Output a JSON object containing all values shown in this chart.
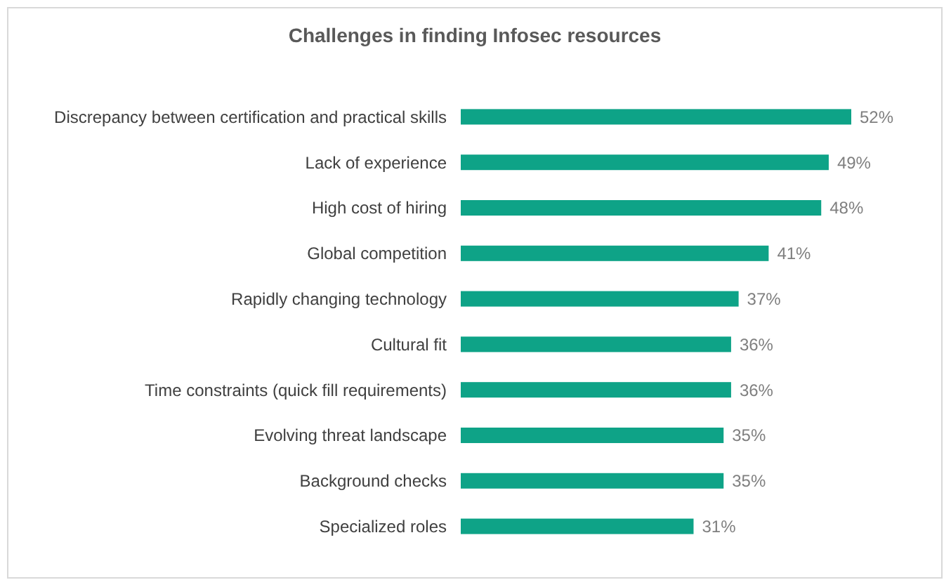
{
  "chart_data": {
    "type": "bar",
    "orientation": "horizontal",
    "title": "Challenges in finding Infosec resources",
    "categories": [
      "Discrepancy between certification and practical skills",
      "Lack of experience",
      "High cost of hiring",
      "Global competition",
      "Rapidly changing technology",
      "Cultural fit",
      "Time constraints (quick fill requirements)",
      "Evolving threat landscape",
      "Background checks",
      "Specialized roles"
    ],
    "values": [
      52,
      49,
      48,
      41,
      37,
      36,
      36,
      35,
      35,
      31
    ],
    "value_labels": [
      "52%",
      "49%",
      "48%",
      "41%",
      "37%",
      "36%",
      "36%",
      "35%",
      "35%",
      "31%"
    ],
    "color": "#0ea387"
  }
}
